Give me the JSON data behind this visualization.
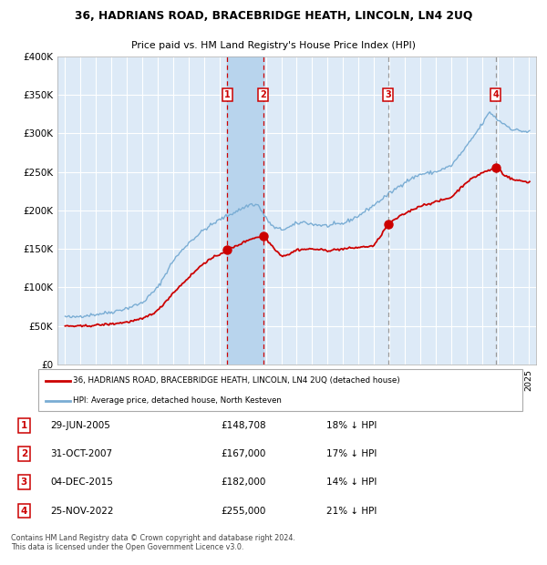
{
  "title": "36, HADRIANS ROAD, BRACEBRIDGE HEATH, LINCOLN, LN4 2UQ",
  "subtitle": "Price paid vs. HM Land Registry's House Price Index (HPI)",
  "red_label": "36, HADRIANS ROAD, BRACEBRIDGE HEATH, LINCOLN, LN4 2UQ (detached house)",
  "blue_label": "HPI: Average price, detached house, North Kesteven",
  "footer": "Contains HM Land Registry data © Crown copyright and database right 2024.\nThis data is licensed under the Open Government Licence v3.0.",
  "transactions": [
    {
      "num": 1,
      "date": "29-JUN-2005",
      "price": 148708,
      "hpi_diff": "18% ↓ HPI"
    },
    {
      "num": 2,
      "date": "31-OCT-2007",
      "price": 167000,
      "hpi_diff": "17% ↓ HPI"
    },
    {
      "num": 3,
      "date": "04-DEC-2015",
      "price": 182000,
      "hpi_diff": "14% ↓ HPI"
    },
    {
      "num": 4,
      "date": "25-NOV-2022",
      "price": 255000,
      "hpi_diff": "21% ↓ HPI"
    }
  ],
  "transaction_years": [
    2005.49,
    2007.83,
    2015.92,
    2022.9
  ],
  "ylim": [
    0,
    400000
  ],
  "yticks": [
    0,
    50000,
    100000,
    150000,
    200000,
    250000,
    300000,
    350000,
    400000
  ],
  "ytick_labels": [
    "£0",
    "£50K",
    "£100K",
    "£150K",
    "£200K",
    "£250K",
    "£300K",
    "£350K",
    "£400K"
  ],
  "background_color": "#ffffff",
  "plot_bg_color": "#ddeaf7",
  "grid_color": "#ffffff",
  "red_color": "#cc0000",
  "blue_color": "#7aadd4",
  "vline_red_color": "#cc0000",
  "vline_gray_color": "#999999",
  "shade_color": "#b8d4ed",
  "box_edge_color": "#cc0000",
  "xlim_start": 1994.5,
  "xlim_end": 2025.5
}
